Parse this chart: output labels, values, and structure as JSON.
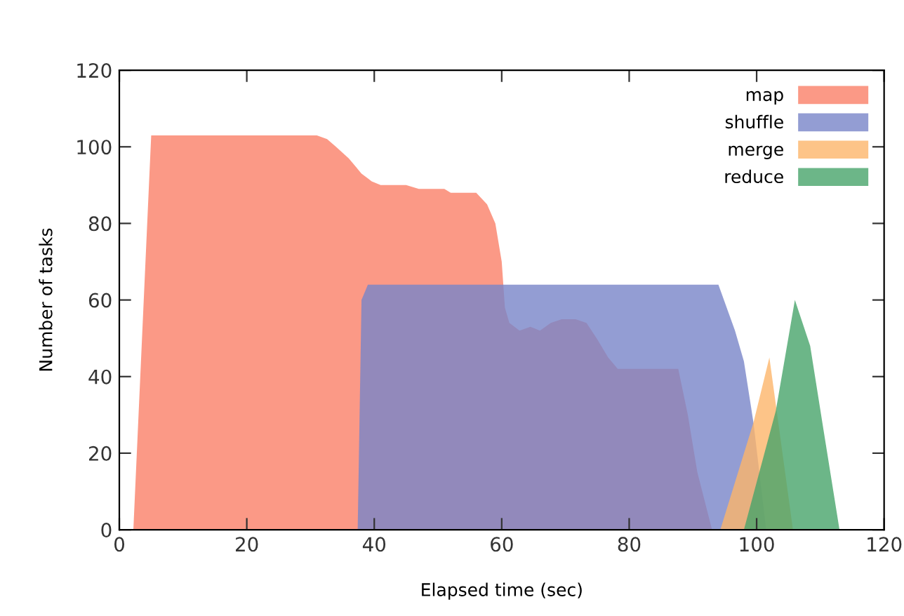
{
  "chart_data": {
    "type": "area",
    "xlabel": "Elapsed time (sec)",
    "ylabel": "Number of tasks",
    "xlim": [
      0,
      120
    ],
    "xticks": [
      0,
      20,
      40,
      60,
      80,
      100,
      120
    ],
    "ylim": [
      0,
      120
    ],
    "yticks": [
      0,
      20,
      40,
      60,
      80,
      100,
      120
    ],
    "grid": false,
    "legend": "top right",
    "series": [
      {
        "name": "map",
        "color": "#fa7f68",
        "x": [
          2.2,
          5,
          31,
          32.6,
          34,
          36,
          38,
          39.6,
          41,
          45,
          47,
          51,
          52,
          56,
          57.7,
          59,
          60,
          60.5,
          61.2,
          62.8,
          64.5,
          66,
          67.7,
          69.4,
          71.6,
          73.3,
          74.9,
          76.7,
          78.2,
          87.7,
          89.2,
          90.7,
          93
        ],
        "values": [
          0,
          103,
          103,
          102,
          100,
          97,
          93,
          91,
          90,
          90,
          89,
          89,
          88,
          88,
          85,
          80,
          70,
          58,
          54,
          52,
          53,
          52,
          54,
          55,
          55,
          54,
          50,
          45,
          42,
          42,
          30,
          15,
          0
        ]
      },
      {
        "name": "shuffle",
        "color": "#7884c8",
        "x": [
          37.4,
          38,
          39,
          94,
          96.6,
          98,
          99.5,
          101.5
        ],
        "values": [
          0,
          60,
          64,
          64,
          52,
          44,
          28,
          0
        ]
      },
      {
        "name": "merge",
        "color": "#fdb56a",
        "x": [
          94.3,
          99.5,
          102,
          105.7
        ],
        "values": [
          0,
          28,
          45,
          0
        ]
      },
      {
        "name": "reduce",
        "color": "#47a46a",
        "x": [
          98,
          103,
          106,
          108.4,
          110.5,
          113
        ],
        "values": [
          0,
          31,
          60,
          48,
          26,
          0
        ]
      }
    ]
  }
}
